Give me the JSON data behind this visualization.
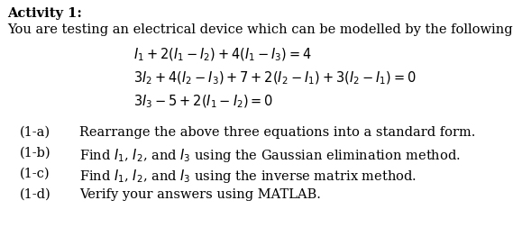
{
  "background_color": "#ffffff",
  "title_bold": "Activity 1:",
  "intro_text": "You are testing an electrical device which can be modelled by the following equations:",
  "eq1": "$I_1 + 2(I_1 - I_2) + 4(I_1 - I_3) = 4$",
  "eq2": "$3I_2 + 4(I_2 - I_3) + 7 + 2(I_2 - I_1) + 3(I_2 - I_1) = 0$",
  "eq3": "$3I_3 - 5 + 2(I_1 - I_2) = 0$",
  "sub_labels": [
    "(1-a)",
    "(1-b)",
    "(1-c)",
    "(1-d)"
  ],
  "sub_texts": [
    "Rearrange the above three equations into a standard form.",
    "Find $I_1$, $I_2$, and $I_3$ using the Gaussian elimination method.",
    "Find $I_1$, $I_2$, and $I_3$ using the inverse matrix method.",
    "Verify your answers using MATLAB."
  ],
  "font_size": 10.5,
  "text_color": "#000000",
  "fig_w": 5.69,
  "fig_h": 2.63,
  "dpi": 100
}
